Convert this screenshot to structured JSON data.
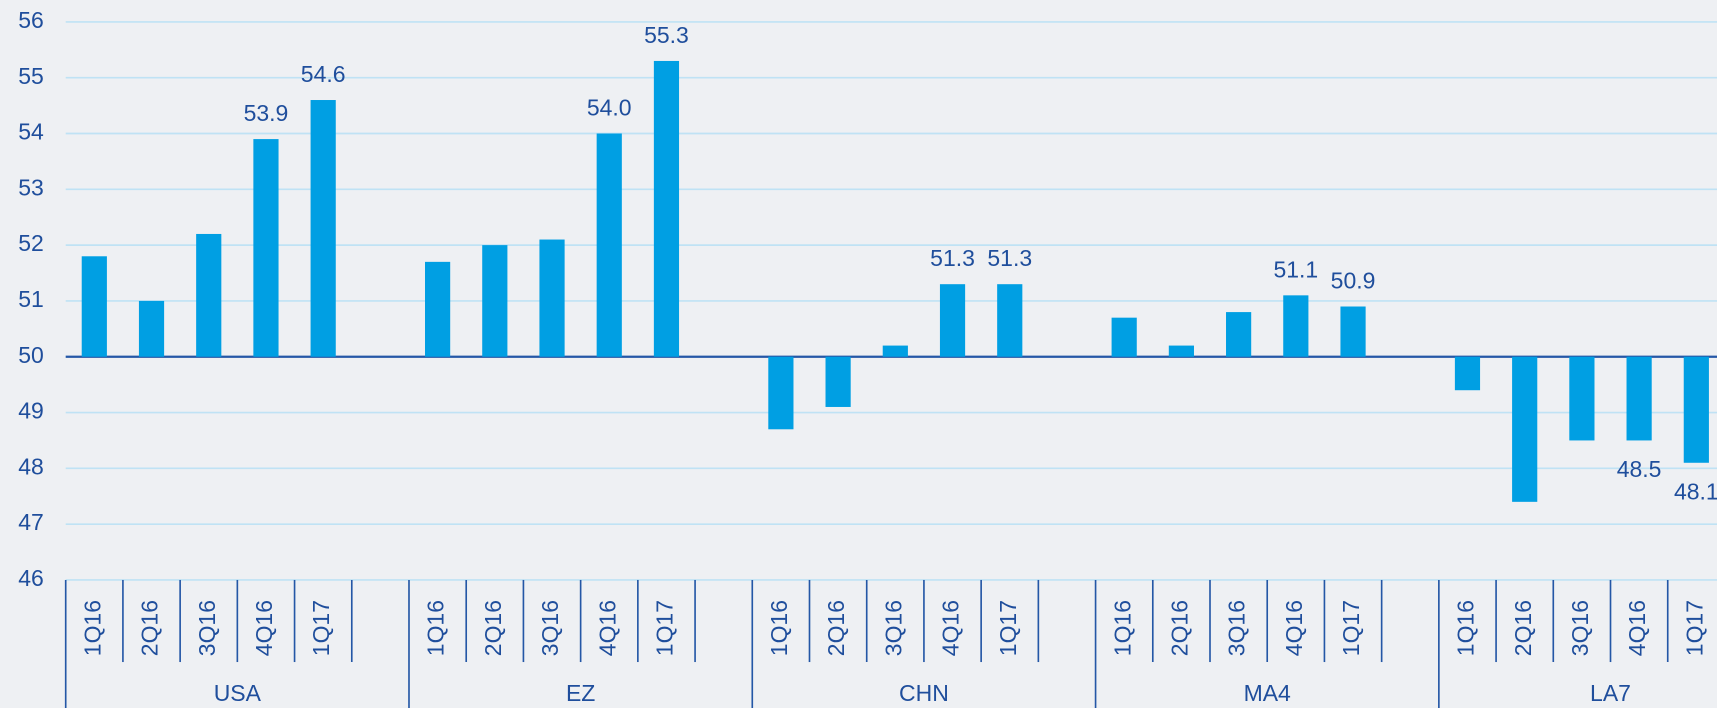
{
  "chart_data": {
    "type": "bar",
    "color": "#009fe3",
    "grid": true,
    "bar_base": 50,
    "ylim": [
      46,
      56
    ],
    "yticks": [
      46,
      47,
      48,
      49,
      50,
      51,
      52,
      53,
      54,
      55,
      56
    ],
    "groups": [
      {
        "name": "USA",
        "categories": [
          "1Q16",
          "2Q16",
          "3Q16",
          "4Q16",
          "1Q17"
        ],
        "values": [
          51.8,
          51.0,
          52.2,
          53.9,
          54.6
        ],
        "value_labels": [
          null,
          null,
          null,
          "53.9",
          "54.6"
        ]
      },
      {
        "name": "EZ",
        "categories": [
          "1Q16",
          "2Q16",
          "3Q16",
          "4Q16",
          "1Q17"
        ],
        "values": [
          51.7,
          52.0,
          52.1,
          54.0,
          55.3
        ],
        "value_labels": [
          null,
          null,
          null,
          "54.0",
          "55.3"
        ]
      },
      {
        "name": "CHN",
        "categories": [
          "1Q16",
          "2Q16",
          "3Q16",
          "4Q16",
          "1Q17"
        ],
        "values": [
          48.7,
          49.1,
          50.2,
          51.3,
          51.3
        ],
        "value_labels": [
          null,
          null,
          null,
          "51.3",
          "51.3"
        ]
      },
      {
        "name": "MA4",
        "categories": [
          "1Q16",
          "2Q16",
          "3Q16",
          "4Q16",
          "1Q17"
        ],
        "values": [
          50.7,
          50.2,
          50.8,
          51.1,
          50.9
        ],
        "value_labels": [
          null,
          null,
          null,
          "51.1",
          "50.9"
        ]
      },
      {
        "name": "LA7",
        "categories": [
          "1Q16",
          "2Q16",
          "3Q16",
          "4Q16",
          "1Q17"
        ],
        "values": [
          49.4,
          47.4,
          48.5,
          48.5,
          48.1
        ],
        "value_labels": [
          null,
          null,
          null,
          "48.5",
          "48.1"
        ]
      }
    ]
  }
}
